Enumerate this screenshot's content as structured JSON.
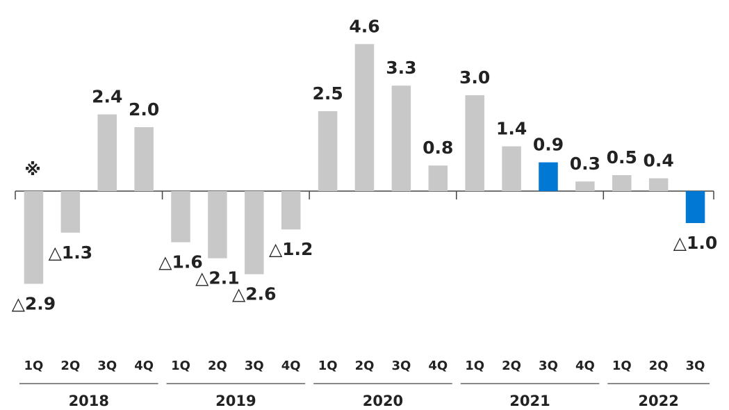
{
  "chart_data": {
    "type": "bar",
    "annotation": "※",
    "groups": [
      {
        "name": "2018",
        "categories": [
          "1Q",
          "2Q",
          "3Q",
          "4Q"
        ]
      },
      {
        "name": "2019",
        "categories": [
          "1Q",
          "2Q",
          "3Q",
          "4Q"
        ]
      },
      {
        "name": "2020",
        "categories": [
          "1Q",
          "2Q",
          "3Q",
          "4Q"
        ]
      },
      {
        "name": "2021",
        "categories": [
          "1Q",
          "2Q",
          "3Q",
          "4Q"
        ]
      },
      {
        "name": "2022",
        "categories": [
          "1Q",
          "2Q",
          "3Q"
        ]
      }
    ],
    "values": [
      -2.9,
      -1.3,
      2.4,
      2.0,
      -1.6,
      -2.1,
      -2.6,
      -1.2,
      2.5,
      4.6,
      3.3,
      0.8,
      3.0,
      1.4,
      0.9,
      0.3,
      0.5,
      0.4,
      -1.0
    ],
    "value_labels": [
      "△2.9",
      "△1.3",
      "2.4",
      "2.0",
      "△1.6",
      "△2.1",
      "△2.6",
      "△1.2",
      "2.5",
      "4.6",
      "3.3",
      "0.8",
      "3.0",
      "1.4",
      "0.9",
      "0.3",
      "0.5",
      "0.4",
      "△1.0"
    ],
    "colors": [
      "#c8c8c8",
      "#c8c8c8",
      "#c8c8c8",
      "#c8c8c8",
      "#c8c8c8",
      "#c8c8c8",
      "#c8c8c8",
      "#c8c8c8",
      "#c8c8c8",
      "#c8c8c8",
      "#c8c8c8",
      "#c8c8c8",
      "#c8c8c8",
      "#c8c8c8",
      "#0078d4",
      "#c8c8c8",
      "#c8c8c8",
      "#c8c8c8",
      "#0078d4"
    ],
    "label_colors": [
      "#222222",
      "#222222",
      "#222222",
      "#222222",
      "#222222",
      "#222222",
      "#222222",
      "#222222",
      "#222222",
      "#222222",
      "#222222",
      "#222222",
      "#222222",
      "#222222",
      "#0078d4",
      "#222222",
      "#222222",
      "#222222",
      "#0078d4"
    ],
    "ylim": [
      -5,
      5
    ],
    "grid": false
  }
}
